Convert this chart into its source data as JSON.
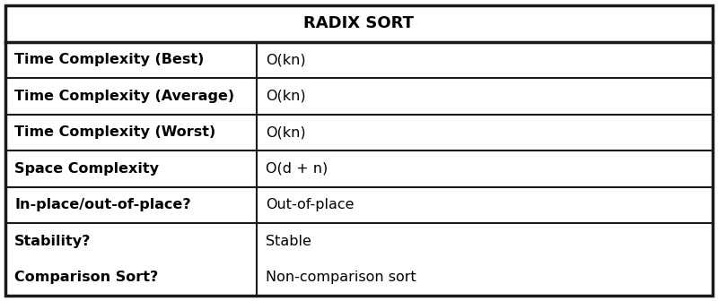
{
  "title": "RADIX SORT",
  "rows": [
    [
      "Time Complexity (Best)",
      "O(kn)"
    ],
    [
      "Time Complexity (Average)",
      "O(kn)"
    ],
    [
      "Time Complexity (Worst)",
      "O(kn)"
    ],
    [
      "Space Complexity",
      "O(d + n)"
    ],
    [
      "In-place/out-of-place?",
      "Out-of-place"
    ],
    [
      "Stability?",
      "Stable"
    ],
    [
      "Comparison Sort?",
      "Non-comparison sort"
    ]
  ],
  "col_split": 0.355,
  "bg_color": "#ffffff",
  "border_color": "#1a1a1a",
  "title_fontsize": 13,
  "cell_fontsize": 11.5,
  "outer_lw": 2.5,
  "inner_lw": 1.5
}
